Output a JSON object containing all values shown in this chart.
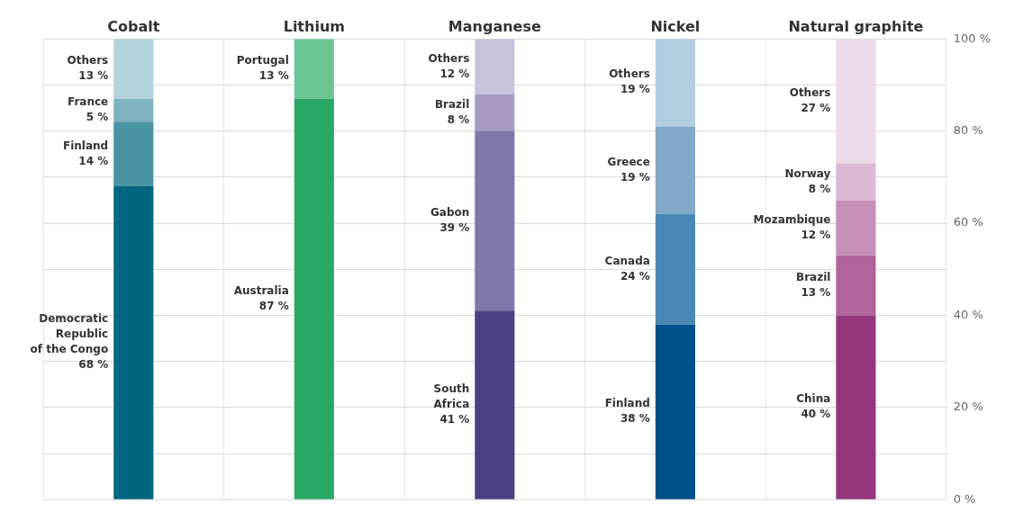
{
  "chart_data": {
    "type": "bar",
    "stacked": true,
    "categories": [
      "Cobalt",
      "Lithium",
      "Manganese",
      "Nickel",
      "Natural graphite"
    ],
    "series": [
      {
        "colors": [
          "#006680",
          "#2aa866",
          "#4e3e82",
          "#00508a",
          "#94367c"
        ],
        "values": [
          68,
          87,
          41,
          38,
          40
        ]
      },
      {
        "colors": [
          "#4a93a3",
          "#6cc694",
          "#8376ab",
          "#4a87b5",
          "#b0649b"
        ],
        "values": [
          14,
          13,
          39,
          24,
          13
        ]
      },
      {
        "colors": [
          "#7fb3c0",
          null,
          "#a79bc3",
          "#80a9c9",
          "#c58fb8"
        ],
        "values": [
          5,
          null,
          8,
          19,
          12
        ]
      },
      {
        "colors": [
          "#b3d3db",
          null,
          "#c9c2dd",
          "#b3cde0",
          "#dbb9d3"
        ],
        "values": [
          13,
          null,
          12,
          19,
          8
        ]
      },
      {
        "colors": [
          null,
          null,
          null,
          null,
          "#eddbe9"
        ],
        "values": [
          null,
          null,
          null,
          null,
          27
        ]
      }
    ],
    "annotations": [
      "Democratic\nRepublic\nof the Congo\n68 %",
      "Finland\n14 %",
      "France\n5 %",
      "Others\n13 %",
      "Australia\n87 %",
      "Portugal\n13 %",
      "South\nAfrica\n41 %",
      "Gabon\n39 %",
      "Brazil\n8 %",
      "Others\n12 %",
      "Finland\n38 %",
      "Canada\n24 %",
      "Greece\n19 %",
      "Others\n19 %",
      "China\n40 %",
      "Brazil\n13 %",
      "Mozambique\n12 %",
      "Norway\n8 %",
      "Others\n27 %"
    ],
    "ylim": [
      0,
      100
    ],
    "yticks": [
      {
        "value": 0,
        "label": "0 %"
      },
      {
        "value": 10,
        "label": null
      },
      {
        "value": 20,
        "label": "20 %"
      },
      {
        "value": 30,
        "label": null
      },
      {
        "value": 40,
        "label": "40 %"
      },
      {
        "value": 50,
        "label": null
      },
      {
        "value": 60,
        "label": "60 %"
      },
      {
        "value": 70,
        "label": null
      },
      {
        "value": 80,
        "label": "80 %"
      },
      {
        "value": 90,
        "label": null
      },
      {
        "value": 100,
        "label": "100 %"
      }
    ],
    "grid": true
  }
}
